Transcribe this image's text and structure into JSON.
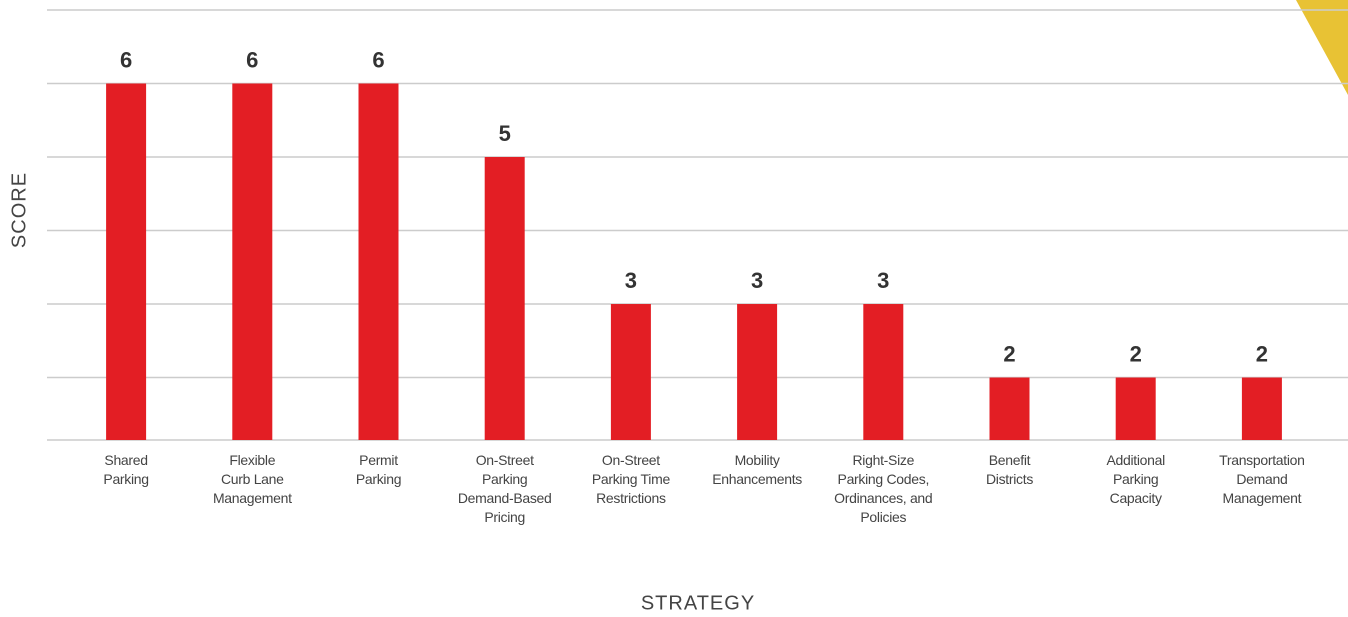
{
  "chart_data": {
    "type": "bar",
    "x_label": "STRATEGY",
    "y_label": "SCORE",
    "categories": [
      "Shared\nParking",
      "Flexible\nCurb Lane\nManagement",
      "Permit\nParking",
      "On-Street\nParking\nDemand-Based\nPricing",
      "On-Street\nParking Time\nRestrictions",
      "Mobility\nEnhancements",
      "Right-Size\nParking Codes,\nOrdinances, and\nPolicies",
      "Benefit\nDistricts",
      "Additional\nParking\nCapacity",
      "Transportation\nDemand\nManagement"
    ],
    "values": [
      6,
      6,
      6,
      5,
      3,
      3,
      3,
      2,
      2,
      2
    ],
    "color": "#e31e24",
    "ylim": [
      1.15,
      7
    ],
    "yticks": [
      2,
      3,
      4,
      5,
      6,
      7
    ],
    "grid": true
  }
}
